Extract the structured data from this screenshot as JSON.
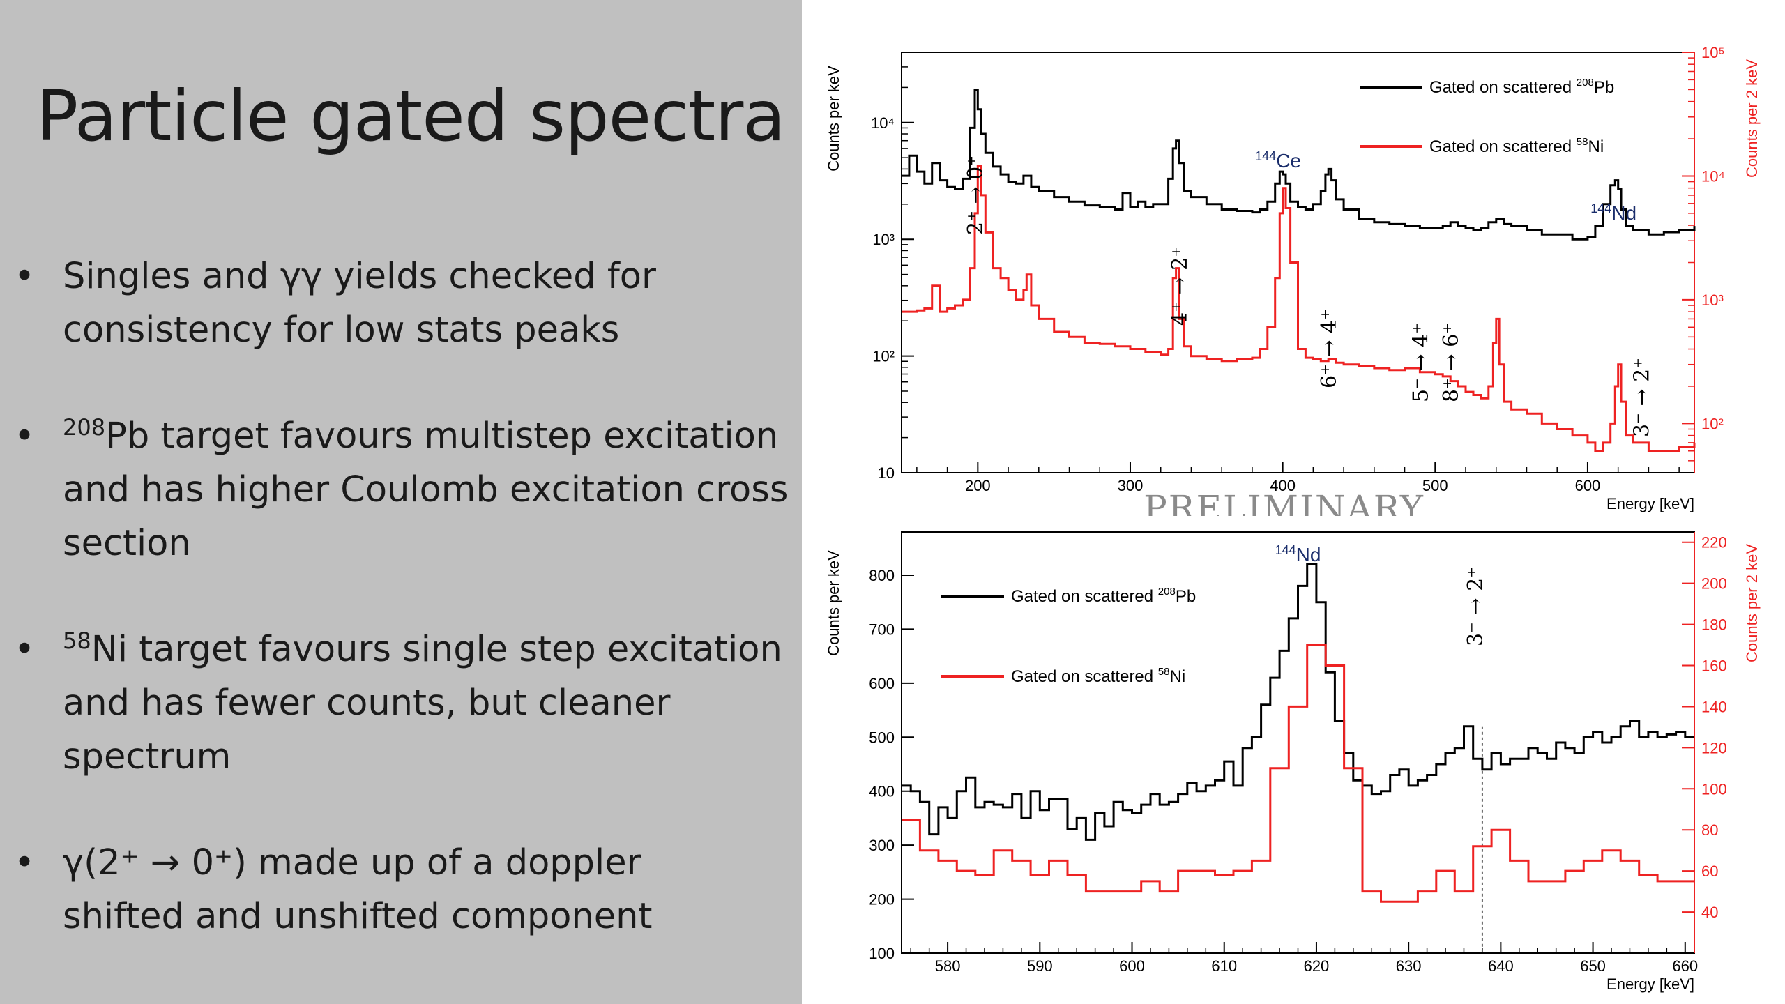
{
  "slide": {
    "title": "Particle gated spectra",
    "bullets": [
      {
        "dot": "•",
        "lines": [
          "Singles and γγ yields checked for",
          "consistency for low stats peaks"
        ]
      },
      {
        "dot": "•",
        "sup": "208",
        "lines": [
          "Pb target favours multistep excitation",
          "and has higher Coulomb excitation cross",
          "section"
        ]
      },
      {
        "dot": "•",
        "sup": "58",
        "lines": [
          "Ni target favours single step excitation",
          "and has fewer counts, but cleaner",
          "spectrum"
        ]
      },
      {
        "dot": "•",
        "lines": [
          "γ(2⁺ → 0⁺) made up of a doppler",
          "shifted and unshifted component"
        ]
      }
    ]
  },
  "colors": {
    "black_series": "#000000",
    "red_series": "#ee2222",
    "nuclide_label": "#1a2d6b",
    "left_panel": "#c0c0c0"
  },
  "chart_data": [
    {
      "type": "line",
      "xlabel": "Energy [keV]",
      "ylabel_left": "Counts per keV",
      "ylabel_right": "Counts per 2 keV",
      "xlim": [
        150,
        670
      ],
      "ylim_left": [
        10,
        40000
      ],
      "ylim_right": [
        40,
        100000
      ],
      "log_y": true,
      "x_ticks": [
        200,
        300,
        400,
        500,
        600
      ],
      "y_ticks_left": [
        {
          "v": 10,
          "label": "10"
        },
        {
          "v": 100,
          "label": "10²"
        },
        {
          "v": 1000,
          "label": "10³"
        },
        {
          "v": 10000,
          "label": "10⁴"
        }
      ],
      "y_ticks_right": [
        {
          "v": 100,
          "label": "10²"
        },
        {
          "v": 1000,
          "label": "10³"
        },
        {
          "v": 10000,
          "label": "10⁴"
        },
        {
          "v": 100000,
          "label": "10⁵"
        }
      ],
      "legend_position": "top-right",
      "watermark": "PRELIMINARY",
      "series": [
        {
          "name": "Gated on scattered 208Pb",
          "legend_text": "Gated on scattered ",
          "legend_sup": "208",
          "legend_el": "Pb",
          "axis": "left",
          "color": "#000000",
          "x": [
            150,
            155,
            160,
            165,
            170,
            175,
            180,
            185,
            190,
            195,
            198,
            200,
            202,
            205,
            210,
            215,
            220,
            225,
            230,
            235,
            240,
            250,
            260,
            270,
            280,
            290,
            295,
            300,
            305,
            310,
            315,
            320,
            325,
            328,
            330,
            332,
            335,
            340,
            350,
            360,
            370,
            380,
            385,
            390,
            395,
            398,
            400,
            402,
            405,
            410,
            415,
            420,
            425,
            428,
            430,
            432,
            435,
            440,
            450,
            460,
            470,
            480,
            490,
            500,
            505,
            510,
            515,
            520,
            525,
            530,
            535,
            540,
            545,
            550,
            560,
            570,
            580,
            590,
            600,
            605,
            610,
            615,
            618,
            620,
            622,
            625,
            630,
            640,
            650,
            660,
            670
          ],
          "y": [
            3500,
            5200,
            3800,
            3000,
            4500,
            3200,
            2800,
            2700,
            3300,
            9000,
            19000,
            13000,
            8000,
            5500,
            4200,
            3600,
            3100,
            3000,
            3500,
            2800,
            2600,
            2300,
            2100,
            1950,
            1900,
            1800,
            2500,
            1900,
            2100,
            1900,
            2000,
            2000,
            3300,
            6000,
            7000,
            4500,
            2600,
            2300,
            2000,
            1800,
            1750,
            1700,
            1800,
            2100,
            3000,
            3800,
            3600,
            3000,
            2100,
            1900,
            1800,
            2000,
            2600,
            3600,
            4000,
            3200,
            2200,
            1800,
            1500,
            1400,
            1350,
            1300,
            1250,
            1250,
            1300,
            1400,
            1300,
            1250,
            1200,
            1250,
            1400,
            1500,
            1350,
            1300,
            1200,
            1100,
            1100,
            1000,
            1050,
            1300,
            2000,
            2900,
            3200,
            2700,
            1800,
            1300,
            1200,
            1100,
            1150,
            1200,
            1300
          ]
        },
        {
          "name": "Gated on scattered 58Ni",
          "legend_text": "Gated on scattered ",
          "legend_sup": "58",
          "legend_el": "Ni",
          "axis": "right",
          "color": "#ee2222",
          "x": [
            150,
            160,
            165,
            170,
            175,
            180,
            185,
            190,
            195,
            198,
            200,
            202,
            205,
            210,
            215,
            220,
            225,
            230,
            232,
            235,
            240,
            250,
            260,
            270,
            280,
            290,
            300,
            310,
            320,
            325,
            328,
            330,
            332,
            335,
            340,
            350,
            360,
            370,
            380,
            385,
            390,
            395,
            398,
            400,
            402,
            405,
            410,
            415,
            420,
            425,
            430,
            435,
            440,
            450,
            460,
            470,
            480,
            490,
            500,
            505,
            510,
            515,
            520,
            525,
            530,
            535,
            538,
            540,
            542,
            545,
            550,
            560,
            570,
            580,
            590,
            600,
            605,
            610,
            615,
            618,
            620,
            622,
            625,
            630,
            640,
            650,
            660,
            670
          ],
          "y": [
            800,
            820,
            850,
            1300,
            800,
            850,
            900,
            1000,
            1800,
            5000,
            12000,
            7000,
            3500,
            1800,
            1500,
            1200,
            1000,
            1200,
            1600,
            900,
            700,
            550,
            500,
            450,
            440,
            420,
            400,
            380,
            360,
            400,
            1500,
            1800,
            700,
            420,
            350,
            330,
            320,
            330,
            340,
            400,
            600,
            1500,
            5000,
            8000,
            5500,
            2000,
            400,
            340,
            330,
            320,
            330,
            310,
            300,
            290,
            280,
            270,
            280,
            260,
            250,
            240,
            220,
            200,
            180,
            170,
            160,
            200,
            450,
            700,
            300,
            150,
            130,
            120,
            100,
            90,
            80,
            70,
            60,
            70,
            100,
            200,
            300,
            150,
            80,
            70,
            60,
            60,
            65,
            70
          ]
        }
      ],
      "peak_labels": [
        {
          "x": 203,
          "text": "2⁺ → 0⁺"
        },
        {
          "x": 337,
          "text": "4⁺ → 2⁺"
        },
        {
          "x": 435,
          "text": "6⁺ → 4⁺"
        },
        {
          "x": 495,
          "text": "5⁻ → 4⁺"
        },
        {
          "x": 515,
          "text": "8⁺ → 6⁺"
        },
        {
          "x": 640,
          "text": "3⁻ → 2⁺"
        }
      ],
      "nuclide_labels": [
        {
          "x": 397,
          "sup": "144",
          "el": "Ce"
        },
        {
          "x": 617,
          "sup": "144",
          "el": "Nd"
        }
      ]
    },
    {
      "type": "line",
      "xlabel": "Energy [keV]",
      "ylabel_left": "Counts per keV",
      "ylabel_right": "Counts per 2 keV",
      "xlim": [
        575,
        661
      ],
      "ylim_left": [
        100,
        880
      ],
      "ylim_right": [
        20,
        225
      ],
      "log_y": false,
      "x_ticks": [
        580,
        590,
        600,
        610,
        620,
        630,
        640,
        650,
        660
      ],
      "y_ticks_left": [
        100,
        200,
        300,
        400,
        500,
        600,
        700,
        800
      ],
      "y_ticks_right": [
        40,
        60,
        80,
        100,
        120,
        140,
        160,
        180,
        200,
        220
      ],
      "legend_position": "top-left",
      "series": [
        {
          "name": "Gated on scattered 208Pb",
          "legend_text": "Gated on scattered ",
          "legend_sup": "208",
          "legend_el": "Pb",
          "axis": "left",
          "color": "#000000",
          "x": [
            575,
            576,
            577,
            578,
            579,
            580,
            581,
            582,
            583,
            584,
            585,
            586,
            587,
            588,
            589,
            590,
            591,
            592,
            593,
            594,
            595,
            596,
            597,
            598,
            599,
            600,
            601,
            602,
            603,
            604,
            605,
            606,
            607,
            608,
            609,
            610,
            611,
            612,
            613,
            614,
            615,
            616,
            617,
            618,
            619,
            620,
            621,
            622,
            623,
            624,
            625,
            626,
            627,
            628,
            629,
            630,
            631,
            632,
            633,
            634,
            635,
            636,
            637,
            638,
            639,
            640,
            641,
            642,
            643,
            644,
            645,
            646,
            647,
            648,
            649,
            650,
            651,
            652,
            653,
            654,
            655,
            656,
            657,
            658,
            659,
            660,
            661
          ],
          "y": [
            410,
            400,
            380,
            320,
            370,
            350,
            400,
            425,
            370,
            380,
            375,
            370,
            395,
            350,
            400,
            365,
            385,
            385,
            330,
            350,
            310,
            360,
            335,
            380,
            365,
            360,
            375,
            395,
            375,
            380,
            395,
            415,
            400,
            410,
            420,
            455,
            410,
            480,
            500,
            560,
            610,
            660,
            720,
            780,
            820,
            750,
            620,
            530,
            470,
            420,
            410,
            395,
            400,
            430,
            440,
            410,
            420,
            430,
            450,
            470,
            480,
            520,
            460,
            440,
            470,
            450,
            460,
            460,
            480,
            470,
            460,
            490,
            480,
            470,
            500,
            510,
            490,
            500,
            520,
            530,
            500,
            510,
            500,
            505,
            510,
            500,
            500
          ]
        },
        {
          "name": "Gated on scattered 58Ni",
          "legend_text": "Gated on scattered ",
          "legend_sup": "58",
          "legend_el": "Ni",
          "axis": "right",
          "color": "#ee2222",
          "x": [
            575,
            577,
            579,
            581,
            583,
            585,
            587,
            589,
            591,
            593,
            595,
            597,
            599,
            601,
            603,
            605,
            607,
            609,
            611,
            613,
            615,
            617,
            619,
            621,
            623,
            625,
            627,
            629,
            631,
            633,
            635,
            637,
            639,
            641,
            643,
            645,
            647,
            649,
            651,
            653,
            655,
            657,
            659,
            661
          ],
          "y": [
            85,
            70,
            65,
            60,
            58,
            70,
            65,
            58,
            65,
            58,
            50,
            50,
            50,
            55,
            50,
            60,
            60,
            58,
            60,
            65,
            110,
            140,
            170,
            160,
            110,
            50,
            45,
            45,
            50,
            60,
            50,
            72,
            80,
            65,
            55,
            55,
            60,
            65,
            70,
            65,
            58,
            55,
            55,
            55
          ]
        }
      ],
      "peak_labels": [
        {
          "x": 638,
          "text": "3⁻ → 2⁺"
        }
      ],
      "nuclide_labels": [
        {
          "x": 618,
          "sup": "144",
          "el": "Nd"
        }
      ],
      "marker_line_x": 638
    }
  ]
}
